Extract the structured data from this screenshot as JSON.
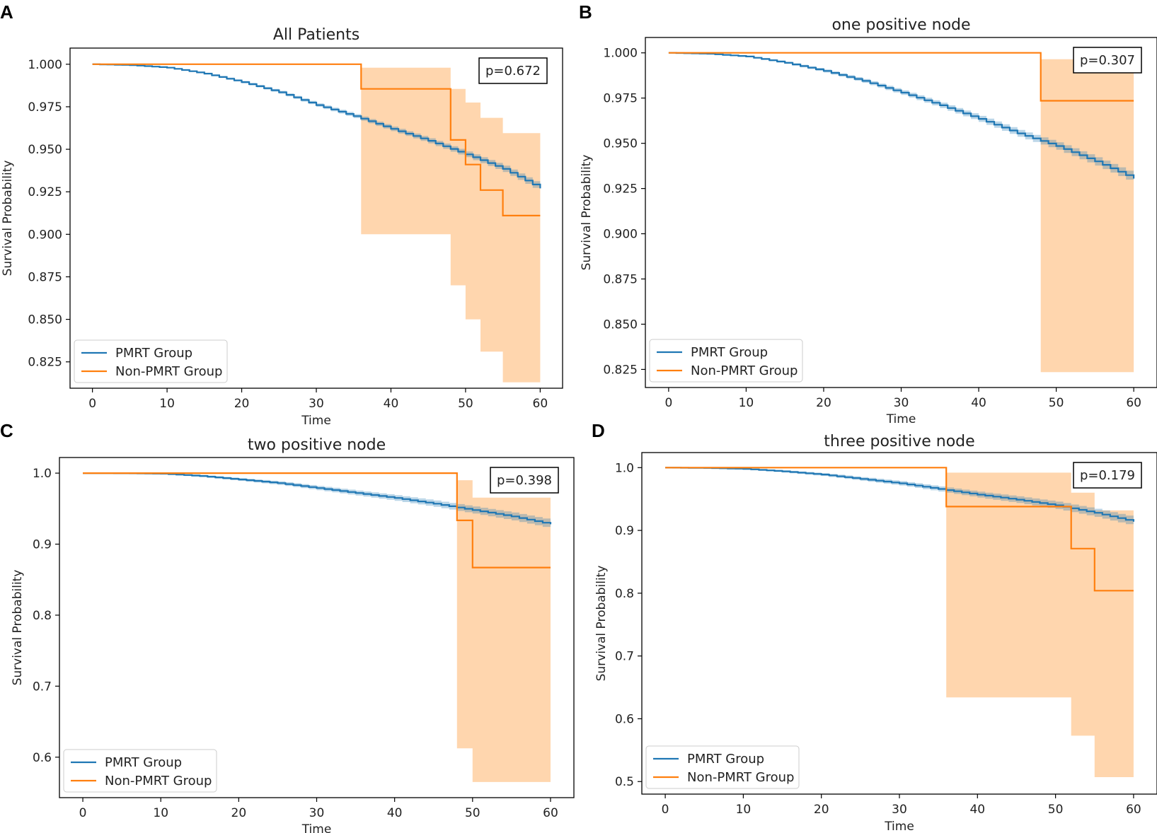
{
  "colors": {
    "pmrt": "#1f77b4",
    "nonpmrt": "#ff7f0e",
    "pmrt_band": "#aec7e8",
    "nonpmrt_band": "#ffbb78"
  },
  "chart_data": [
    {
      "letter": "A",
      "type": "line",
      "title": "All Patients",
      "xlabel": "Time",
      "ylabel": "Survival Probability",
      "xlim": [
        -3,
        63
      ],
      "ylim": [
        0.8095,
        1.0095
      ],
      "xticks": [
        0,
        10,
        20,
        30,
        40,
        50,
        60
      ],
      "yticks": [
        0.825,
        0.85,
        0.875,
        0.9,
        0.925,
        0.95,
        0.975,
        1.0
      ],
      "ytick_labels": [
        "0.825",
        "0.850",
        "0.875",
        "0.900",
        "0.925",
        "0.950",
        "0.975",
        "1.000"
      ],
      "pvalue": "p=0.672",
      "legend": [
        "PMRT Group",
        "Non-PMRT Group"
      ],
      "legend_position": "lower-left",
      "pmrt": {
        "x": [
          0,
          5,
          10,
          15,
          20,
          25,
          30,
          35,
          40,
          45,
          50,
          55,
          60
        ],
        "y": [
          1.0,
          0.9995,
          0.998,
          0.9945,
          0.9895,
          0.9835,
          0.976,
          0.9695,
          0.962,
          0.955,
          0.947,
          0.9385,
          0.927
        ],
        "band": 0.002
      },
      "nonpmrt": {
        "x": [
          0,
          36,
          48,
          50,
          52,
          55,
          60
        ],
        "y": [
          1.0,
          0.9855,
          0.9555,
          0.941,
          0.926,
          0.911,
          0.911
        ],
        "lower": [
          1.0,
          0.9,
          0.87,
          0.85,
          0.831,
          0.813,
          0.813
        ],
        "upper": [
          1.0,
          0.998,
          0.9855,
          0.9775,
          0.9685,
          0.9595,
          0.9595
        ]
      }
    },
    {
      "letter": "B",
      "type": "line",
      "title": "one positive node",
      "xlabel": "Time",
      "ylabel": "Survival Probability",
      "xlim": [
        -3,
        63
      ],
      "ylim": [
        0.815,
        1.0085
      ],
      "xticks": [
        0,
        10,
        20,
        30,
        40,
        50,
        60
      ],
      "yticks": [
        0.825,
        0.85,
        0.875,
        0.9,
        0.925,
        0.95,
        0.975,
        1.0
      ],
      "ytick_labels": [
        "0.825",
        "0.850",
        "0.875",
        "0.900",
        "0.925",
        "0.950",
        "0.975",
        "1.000"
      ],
      "pvalue": "p=0.307",
      "legend": [
        "PMRT Group",
        "Non-PMRT Group"
      ],
      "legend_position": "lower-left",
      "pmrt": {
        "x": [
          0,
          5,
          10,
          15,
          20,
          25,
          30,
          35,
          40,
          45,
          50,
          55,
          60
        ],
        "y": [
          1.0,
          0.9995,
          0.998,
          0.9945,
          0.99,
          0.9845,
          0.978,
          0.971,
          0.9635,
          0.9555,
          0.9485,
          0.94,
          0.9305
        ],
        "band": 0.0025
      },
      "nonpmrt": {
        "x": [
          0,
          48,
          60
        ],
        "y": [
          1.0,
          0.9735,
          0.9735
        ],
        "lower": [
          1.0,
          0.8235,
          0.8235
        ],
        "upper": [
          1.0,
          0.9965,
          0.9965
        ]
      }
    },
    {
      "letter": "C",
      "type": "line",
      "title": "two positive node",
      "xlabel": "Time",
      "ylabel": "Survival Probability",
      "xlim": [
        -3,
        63
      ],
      "ylim": [
        0.543,
        1.022
      ],
      "xticks": [
        0,
        10,
        20,
        30,
        40,
        50,
        60
      ],
      "yticks": [
        0.6,
        0.7,
        0.8,
        0.9,
        1.0
      ],
      "ytick_labels": [
        "0.6",
        "0.7",
        "0.8",
        "0.9",
        "1.0"
      ],
      "pvalue": "p=0.398",
      "legend": [
        "PMRT Group",
        "Non-PMRT Group"
      ],
      "legend_position": "lower-left",
      "pmrt": {
        "x": [
          0,
          5,
          10,
          15,
          20,
          25,
          30,
          35,
          40,
          45,
          50,
          55,
          60
        ],
        "y": [
          1.0,
          0.9998,
          0.9992,
          0.996,
          0.991,
          0.986,
          0.979,
          0.972,
          0.965,
          0.957,
          0.948,
          0.939,
          0.928
        ],
        "band": 0.006
      },
      "nonpmrt": {
        "x": [
          0,
          48,
          50,
          60
        ],
        "y": [
          1.0,
          0.9335,
          0.867,
          0.867
        ],
        "lower": [
          1.0,
          0.6125,
          0.565,
          0.565
        ],
        "upper": [
          1.0,
          0.99,
          0.9655,
          0.9655
        ]
      }
    },
    {
      "letter": "D",
      "type": "line",
      "title": "three positive node",
      "xlabel": "Time",
      "ylabel": "Survival Probability",
      "xlim": [
        -3,
        63
      ],
      "ylim": [
        0.48,
        1.024
      ],
      "xticks": [
        0,
        10,
        20,
        30,
        40,
        50,
        60
      ],
      "yticks": [
        0.5,
        0.6,
        0.7,
        0.8,
        0.9,
        1.0
      ],
      "ytick_labels": [
        "0.5",
        "0.6",
        "0.7",
        "0.8",
        "0.9",
        "1.0"
      ],
      "pvalue": "p=0.179",
      "legend": [
        "PMRT Group",
        "Non-PMRT Group"
      ],
      "legend_position": "lower-left",
      "pmrt": {
        "x": [
          0,
          5,
          10,
          15,
          20,
          25,
          30,
          35,
          40,
          45,
          50,
          55,
          60
        ],
        "y": [
          1.0,
          0.9995,
          0.998,
          0.994,
          0.989,
          0.982,
          0.975,
          0.966,
          0.957,
          0.949,
          0.94,
          0.928,
          0.914
        ],
        "band": 0.007
      },
      "nonpmrt": {
        "x": [
          0,
          36,
          52,
          55,
          60
        ],
        "y": [
          1.0,
          0.938,
          0.871,
          0.804,
          0.804
        ],
        "lower": [
          1.0,
          0.634,
          0.573,
          0.507,
          0.507
        ],
        "upper": [
          1.0,
          0.992,
          0.96,
          0.932,
          0.932
        ]
      }
    }
  ]
}
